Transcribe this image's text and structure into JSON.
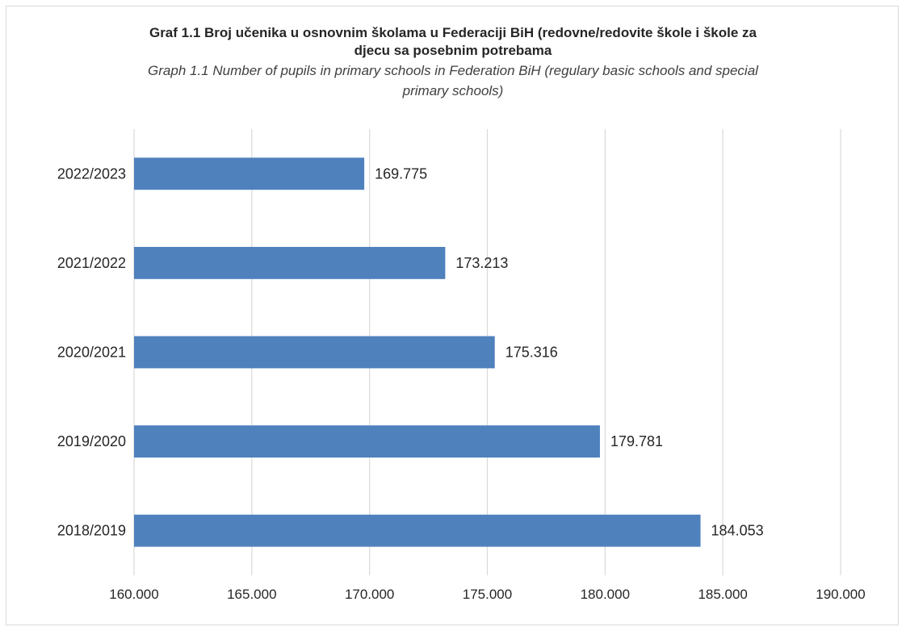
{
  "chart_data": {
    "type": "bar",
    "orientation": "horizontal",
    "title_lines": [
      "Graf 1.1 Broj učenika u osnovnim školama u Federaciji BiH (redovne/redovite škole i škole za",
      "djecu sa posebnim potrebama"
    ],
    "subtitle_lines": [
      "Graph 1.1 Number of pupils in primary schools in Federation BiH (regulary basic schools and special",
      "primary schools)"
    ],
    "xlabel": "",
    "ylabel": "",
    "categories": [
      "2022/2023",
      "2021/2022",
      "2020/2021",
      "2019/2020",
      "2018/2019"
    ],
    "values": [
      169775,
      173213,
      175316,
      179781,
      184053
    ],
    "value_labels": [
      "169.775",
      "173.213",
      "175.316",
      "179.781",
      "184.053"
    ],
    "xlim": [
      160000,
      190000
    ],
    "ticks": [
      160000,
      165000,
      170000,
      175000,
      180000,
      185000,
      190000
    ],
    "tick_labels": [
      "160.000",
      "165.000",
      "170.000",
      "175.000",
      "180.000",
      "185.000",
      "190.000"
    ],
    "grid": "vertical",
    "legend": "none",
    "bar_color": "#4f81bd",
    "grid_color": "#d9d9d9"
  }
}
